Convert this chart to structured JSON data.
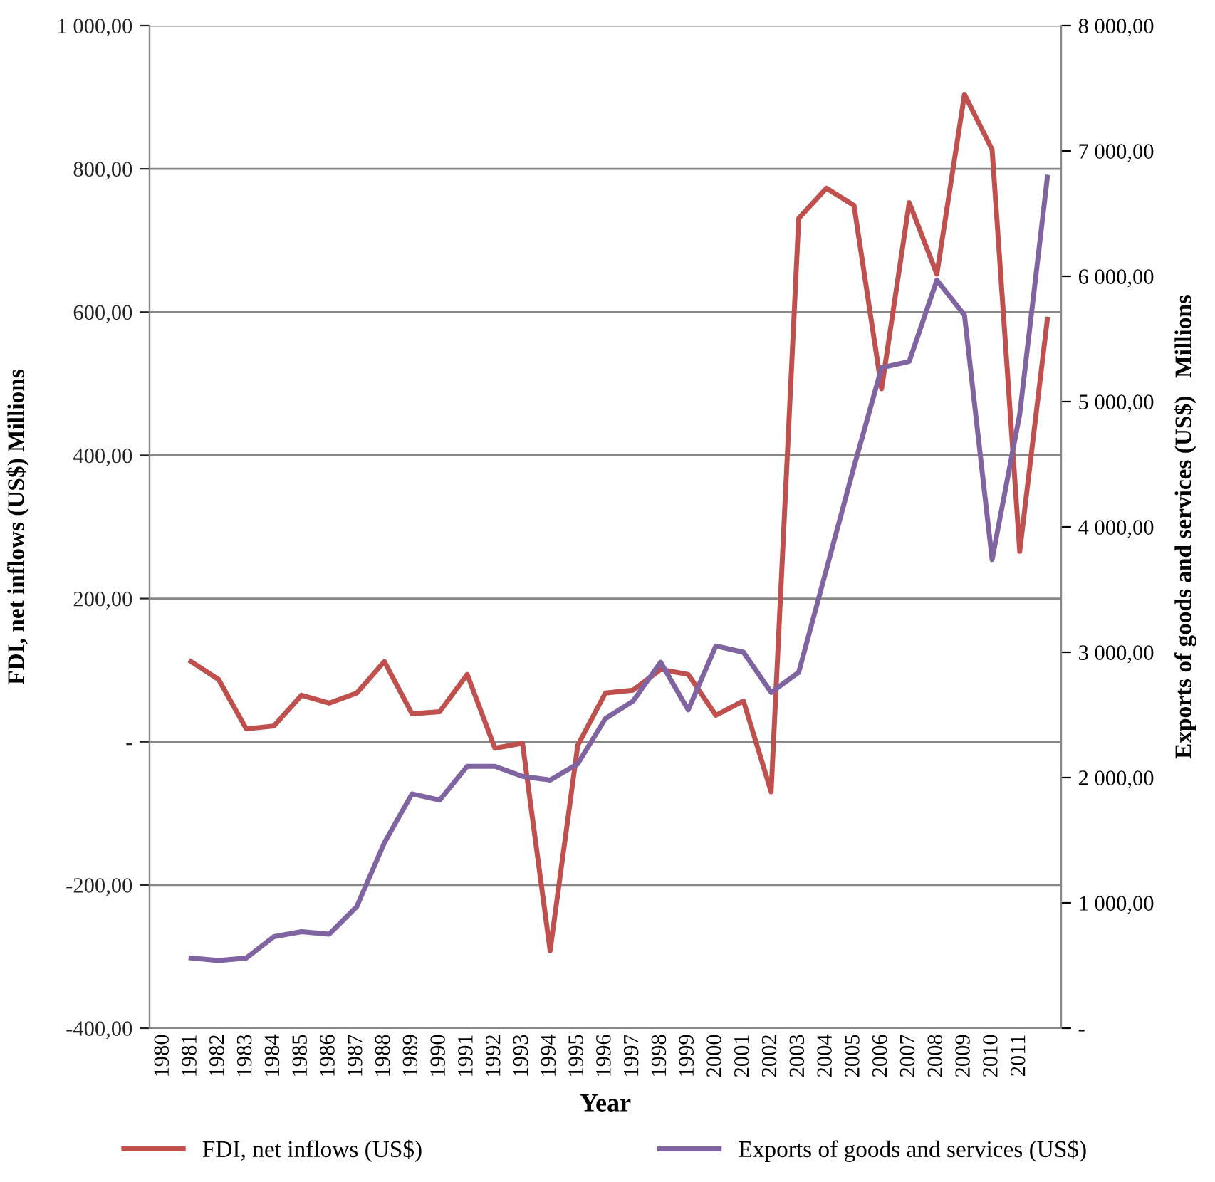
{
  "chart_data": {
    "type": "line",
    "xlabel": "Year",
    "ylabel": "FDI, net inflows (US$) Millions",
    "y2label": "Exports of goods and services (US$)   Millions",
    "categories": [
      "1980",
      "1981",
      "1982",
      "1983",
      "1984",
      "1985",
      "1986",
      "1987",
      "1988",
      "1989",
      "1990",
      "1991",
      "1992",
      "1993",
      "1994",
      "1995",
      "1996",
      "1997",
      "1998",
      "1999",
      "2000",
      "2001",
      "2002",
      "2003",
      "2004",
      "2005",
      "2006",
      "2007",
      "2008",
      "2009",
      "2010",
      "2011",
      null
    ],
    "series": [
      {
        "name": "FDI, net inflows (US$)",
        "color": "#c0504d",
        "values": [
          null,
          112,
          87,
          18,
          22,
          65,
          54,
          68,
          112,
          39,
          42,
          94,
          -9,
          -2,
          -292,
          -5,
          68,
          72,
          101,
          94,
          37,
          57,
          -70,
          731,
          773,
          749,
          493,
          753,
          653,
          904,
          827,
          266,
          590
        ]
      },
      {
        "name": "Exports of goods and services (US$)",
        "color": "#8064a2",
        "axis": "y2",
        "values": [
          null,
          560,
          540,
          560,
          730,
          770,
          750,
          970,
          1480,
          1870,
          1820,
          2090,
          2090,
          2010,
          1980,
          2110,
          2470,
          2610,
          2920,
          2540,
          3050,
          3000,
          2680,
          2840,
          3660,
          4480,
          5270,
          5320,
          5970,
          5690,
          3740,
          4900,
          6790
        ]
      }
    ],
    "ylim": [
      -400,
      1000
    ],
    "yticks": [
      {
        "value": -400,
        "label": "-400,00"
      },
      {
        "value": -200,
        "label": "-200,00"
      },
      {
        "value": 0,
        "label": "-"
      },
      {
        "value": 200,
        "label": "200,00"
      },
      {
        "value": 400,
        "label": "400,00"
      },
      {
        "value": 600,
        "label": "600,00"
      },
      {
        "value": 800,
        "label": "800,00"
      },
      {
        "value": 1000,
        "label": "1 000,00"
      }
    ],
    "y2lim": [
      0,
      8000
    ],
    "y2ticks": [
      {
        "value": 0,
        "label": "-"
      },
      {
        "value": 1000,
        "label": "1 000,00"
      },
      {
        "value": 2000,
        "label": "2 000,00"
      },
      {
        "value": 3000,
        "label": "3 000,00"
      },
      {
        "value": 4000,
        "label": "4 000,00"
      },
      {
        "value": 5000,
        "label": "5 000,00"
      },
      {
        "value": 6000,
        "label": "6 000,00"
      },
      {
        "value": 7000,
        "label": "7 000,00"
      },
      {
        "value": 8000,
        "label": "8 000,00"
      }
    ],
    "grid": "y",
    "legend": "bottom",
    "marker": "none",
    "line_style": "solid"
  }
}
